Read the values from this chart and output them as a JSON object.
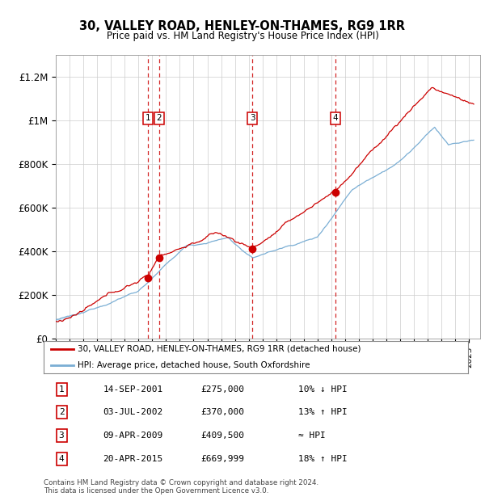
{
  "title": "30, VALLEY ROAD, HENLEY-ON-THAMES, RG9 1RR",
  "subtitle": "Price paid vs. HM Land Registry's House Price Index (HPI)",
  "ylim": [
    0,
    1300000
  ],
  "xlim_start": 1995.0,
  "xlim_end": 2025.8,
  "yticks": [
    0,
    200000,
    400000,
    600000,
    800000,
    1000000,
    1200000
  ],
  "ytick_labels": [
    "£0",
    "£200K",
    "£400K",
    "£600K",
    "£800K",
    "£1M",
    "£1.2M"
  ],
  "sale_dates_decimal": [
    2001.71,
    2002.5,
    2009.27,
    2015.3
  ],
  "sale_prices": [
    275000,
    370000,
    409500,
    669999
  ],
  "sale_labels": [
    "1",
    "2",
    "3",
    "4"
  ],
  "sale_color": "#cc0000",
  "hpi_color": "#7aaed4",
  "hpi_fill_color": "#daeaf5",
  "legend_house_label": "30, VALLEY ROAD, HENLEY-ON-THAMES, RG9 1RR (detached house)",
  "legend_hpi_label": "HPI: Average price, detached house, South Oxfordshire",
  "table_rows": [
    [
      "1",
      "14-SEP-2001",
      "£275,000",
      "10% ↓ HPI"
    ],
    [
      "2",
      "03-JUL-2002",
      "£370,000",
      "13% ↑ HPI"
    ],
    [
      "3",
      "09-APR-2009",
      "£409,500",
      "≈ HPI"
    ],
    [
      "4",
      "20-APR-2015",
      "£669,999",
      "18% ↑ HPI"
    ]
  ],
  "footnote": "Contains HM Land Registry data © Crown copyright and database right 2024.\nThis data is licensed under the Open Government Licence v3.0.",
  "background_color": "#ffffff",
  "grid_color": "#cccccc"
}
